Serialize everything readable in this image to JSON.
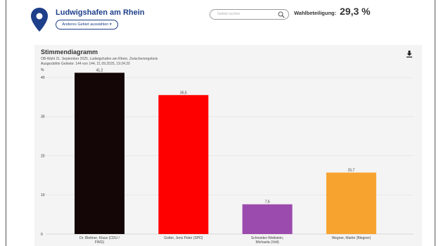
{
  "header": {
    "town": "Ludwigshafen am Rhein",
    "area_button": "Anderes Gebiet auswählen ▾",
    "search_placeholder": "Gebiet suchen",
    "turnout_label": "Wahlbeteiligung:",
    "turnout_value": "29,3 %",
    "accent_color": "#1e3f8a"
  },
  "chart_data": {
    "type": "bar",
    "title": "Stimmendiagramm",
    "subtitle_lines": [
      "OB-Wahl 21. September 2025, Ludwigshafen am Rhein, Zwischenergebnis",
      "Ausgezählte Gebiete: 144 von 144, 21.09.2025, 19:24:20"
    ],
    "ylabel": "%",
    "ylim": [
      0,
      42
    ],
    "yticks": [
      0,
      10,
      20,
      30,
      40
    ],
    "grid": true,
    "categories": [
      [
        "Dr. Blettner, Klaus (CDU /",
        "FWG)"
      ],
      [
        "Gotter, Jens Peter (SPD)"
      ],
      [
        "Schneider-Wettstein,",
        "Michaela (Volt)"
      ],
      [
        "Wegner, Martin (Blegner)"
      ]
    ],
    "values": [
      41.2,
      35.5,
      7.6,
      15.7
    ],
    "value_labels": [
      "41,2",
      "35,5",
      "7,6",
      "15,7"
    ],
    "colors": [
      "#140606",
      "#ff0000",
      "#9b4aad",
      "#f7a330"
    ]
  }
}
